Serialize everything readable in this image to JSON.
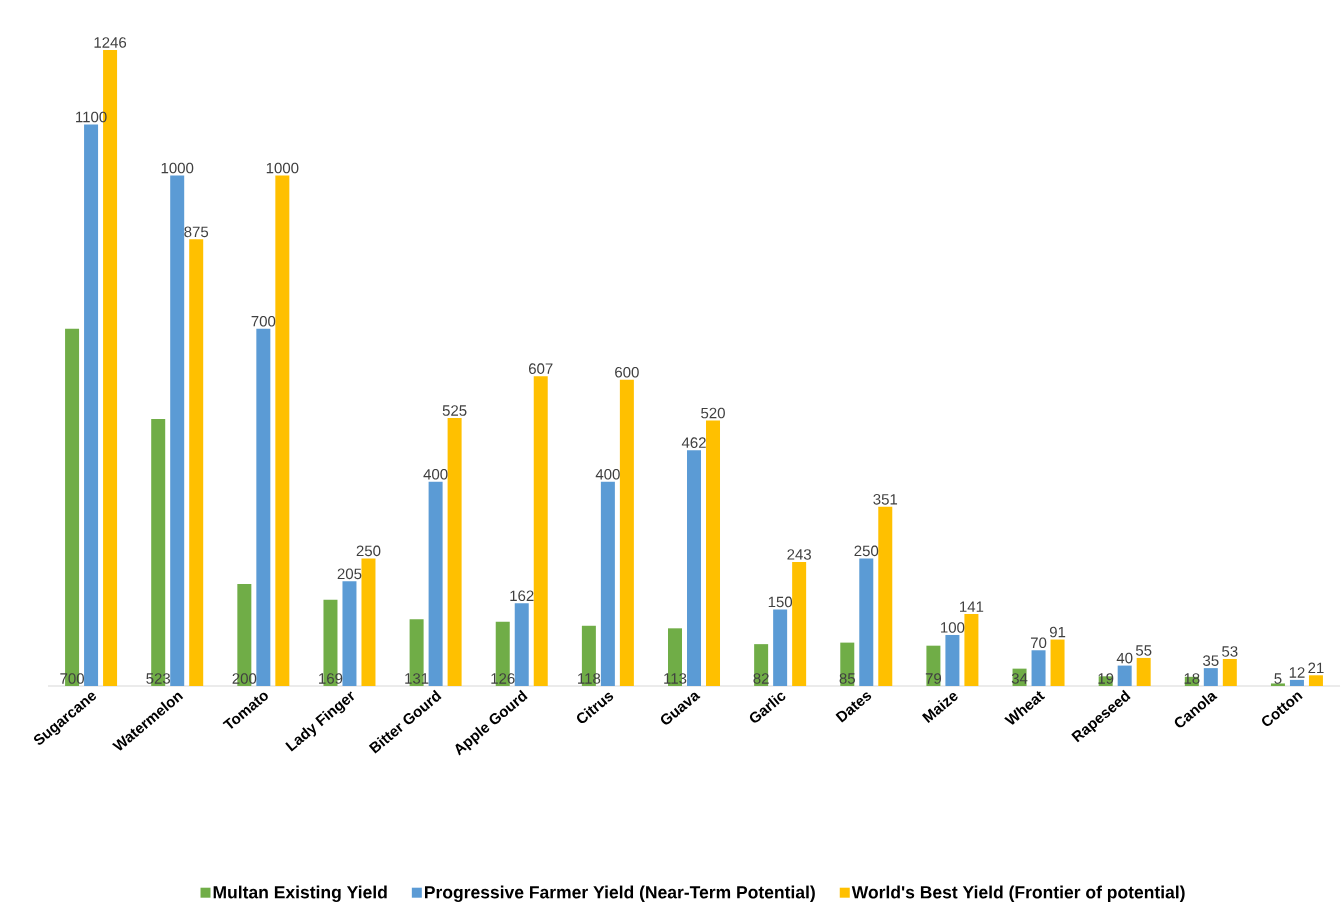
{
  "chart_data": {
    "type": "bar",
    "categories": [
      "Sugarcane",
      "Watermelon",
      "Tomato",
      "Lady Finger",
      "Bitter Gourd",
      "Apple Gourd",
      "Citrus",
      "Guava",
      "Garlic",
      "Dates",
      "Maize",
      "Wheat",
      "Rapeseed",
      "Canola",
      "Cotton"
    ],
    "series": [
      {
        "name": "Multan Existing Yield",
        "color": "#70ad47",
        "values": [
          700,
          523,
          200,
          169,
          131,
          126,
          118,
          113,
          82,
          85,
          79,
          34,
          19,
          18,
          5
        ]
      },
      {
        "name": "Progressive Farmer Yield (Near-Term Potential)",
        "color": "#5b9bd5",
        "values": [
          1100,
          1000,
          700,
          205,
          400,
          162,
          400,
          462,
          150,
          250,
          100,
          70,
          40,
          35,
          12
        ]
      },
      {
        "name": "World's Best Yield (Frontier of potential)",
        "color": "#ffc000",
        "values": [
          1246,
          875,
          1000,
          250,
          525,
          607,
          600,
          520,
          243,
          351,
          141,
          91,
          55,
          53,
          21
        ]
      }
    ],
    "data_labels": true,
    "legend": "bottom"
  }
}
